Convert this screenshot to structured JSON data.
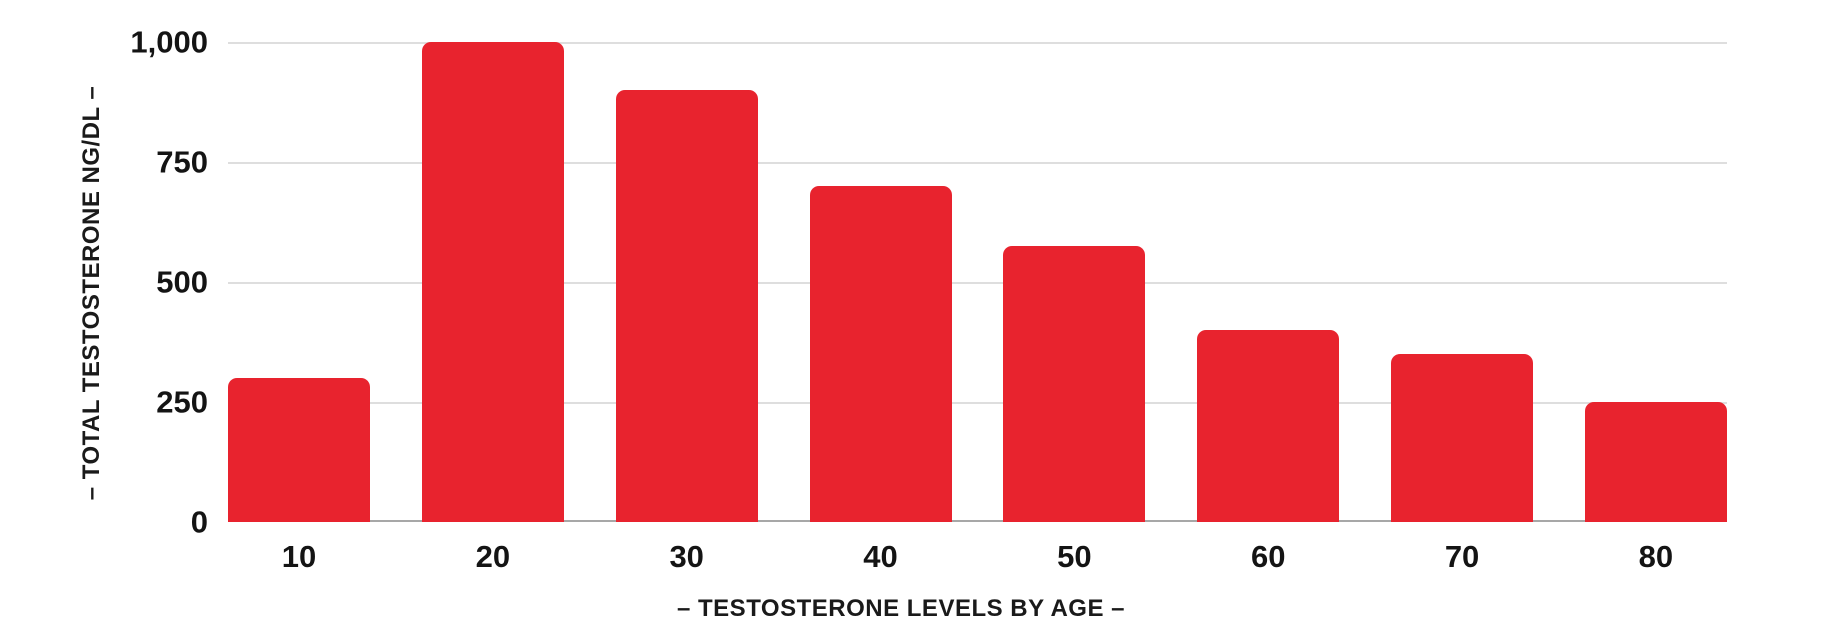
{
  "chart_data": {
    "type": "bar",
    "title": "",
    "xlabel": "– TESTOSTERONE LEVELS BY AGE –",
    "ylabel": "– TOTAL TESTOSTERONE NG/DL –",
    "categories": [
      "10",
      "20",
      "30",
      "40",
      "50",
      "60",
      "70",
      "80"
    ],
    "values": [
      300,
      1000,
      900,
      700,
      575,
      400,
      350,
      250
    ],
    "series": [
      {
        "name": "Total Testosterone (ng/dL)",
        "values": [
          300,
          1000,
          900,
          700,
          575,
          400,
          350,
          250
        ]
      }
    ],
    "ylim": [
      0,
      1000
    ],
    "y_ticks": [
      {
        "label": "0",
        "value": 0
      },
      {
        "label": "250",
        "value": 250
      },
      {
        "label": "500",
        "value": 500
      },
      {
        "label": "750",
        "value": 750
      },
      {
        "label": "1,000",
        "value": 1000
      }
    ],
    "grid": "horizontal",
    "legend": "none",
    "bar_color": "#e8232e"
  },
  "colors": {
    "bar": "#e8232e",
    "gridline": "#dedede",
    "axis_line": "#a7a7a7",
    "text": "#141414",
    "background": "#ffffff"
  }
}
